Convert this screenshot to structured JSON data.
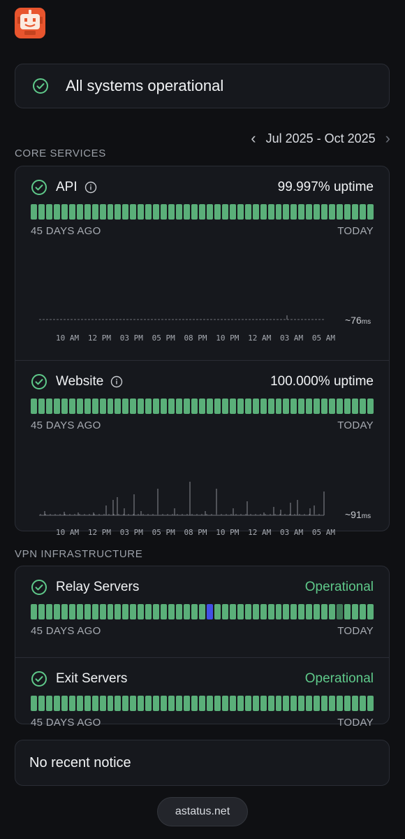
{
  "app": {
    "logo_icon": "robot-logo-icon"
  },
  "banner": {
    "text": "All systems operational",
    "icon": "check-circle-icon"
  },
  "period": {
    "label": "Jul 2025 - Oct 2025",
    "prev_icon": "chevron-left-icon",
    "next_icon": "chevron-right-icon"
  },
  "core": {
    "label": "CORE SERVICES",
    "services": [
      {
        "name": "API",
        "uptime": "99.997% uptime",
        "start_label": "45 DAYS AGO",
        "end_label": "TODAY",
        "latency": "~76",
        "latency_unit": "ms",
        "ticks": [
          "10 AM",
          "12 PM",
          "03 PM",
          "05 PM",
          "08 PM",
          "10 PM",
          "12 AM",
          "03 AM",
          "05 AM"
        ]
      },
      {
        "name": "Website",
        "uptime": "100.000% uptime",
        "start_label": "45 DAYS AGO",
        "end_label": "TODAY",
        "latency": "~91",
        "latency_unit": "ms",
        "ticks": [
          "10 AM",
          "12 PM",
          "03 PM",
          "05 PM",
          "08 PM",
          "10 PM",
          "12 AM",
          "03 AM",
          "05 AM"
        ]
      }
    ]
  },
  "vpn": {
    "label": "VPN INFRASTRUCTURE",
    "services": [
      {
        "name": "Relay Servers",
        "status": "Operational",
        "start_label": "45 DAYS AGO",
        "end_label": "TODAY"
      },
      {
        "name": "Exit Servers",
        "status": "Operational",
        "start_label": "45 DAYS AGO",
        "end_label": "TODAY"
      }
    ]
  },
  "notice": {
    "text": "No recent notice"
  },
  "footer": {
    "text": "astatus.net"
  },
  "colors": {
    "ok": "#5aaf79",
    "incident": "#4250e6",
    "accent_text": "#5fc98a"
  }
}
